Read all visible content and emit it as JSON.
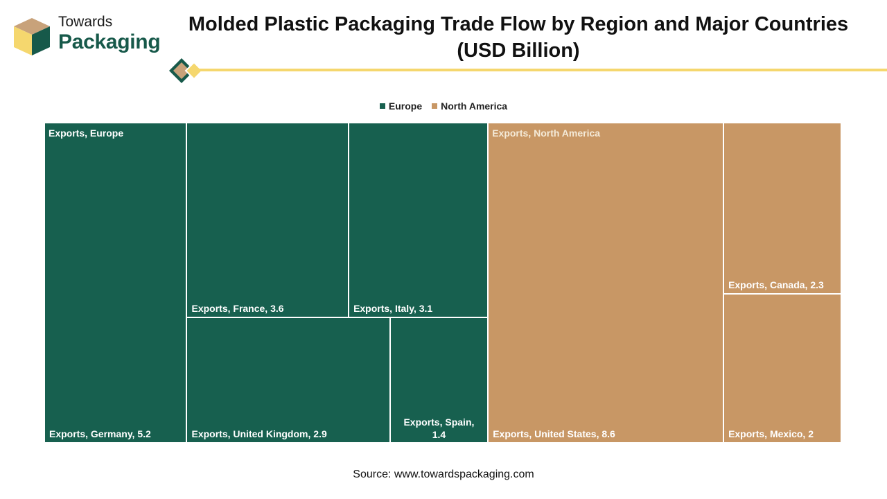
{
  "logo": {
    "line1": "Towards",
    "line2": "Packaging"
  },
  "chart_data": {
    "type": "treemap",
    "title": "Molded Plastic Packaging Trade Flow by Region and Major Countries (USD Billion)",
    "legend": {
      "position": "top-center",
      "entries": [
        "Europe",
        "North America"
      ]
    },
    "groups": [
      {
        "name": "Europe",
        "label": "Exports, Europe",
        "color": "#17604f",
        "items": [
          {
            "label": "Exports, Germany, 5.2",
            "value": 5.2
          },
          {
            "label": "Exports, France, 3.6",
            "value": 3.6
          },
          {
            "label": "Exports, Italy, 3.1",
            "value": 3.1
          },
          {
            "label": "Exports, United Kingdom, 2.9",
            "value": 2.9
          },
          {
            "label": "Exports, Spain, 1.4",
            "value": 1.4,
            "lines": [
              "Exports, Spain,",
              "1.4"
            ]
          }
        ]
      },
      {
        "name": "North America",
        "label": "Exports, North America",
        "color": "#c89765",
        "items": [
          {
            "label": "Exports, United States, 8.6",
            "value": 8.6
          },
          {
            "label": "Exports, Canada, 2.3",
            "value": 2.3
          },
          {
            "label": "Exports, Mexico, 2",
            "value": 2
          }
        ]
      }
    ]
  },
  "source": "Source: www.towardspackaging.com",
  "colors": {
    "accent_yellow": "#f5d76e",
    "brand_green": "#17594a",
    "brand_tan": "#c8a27a"
  }
}
